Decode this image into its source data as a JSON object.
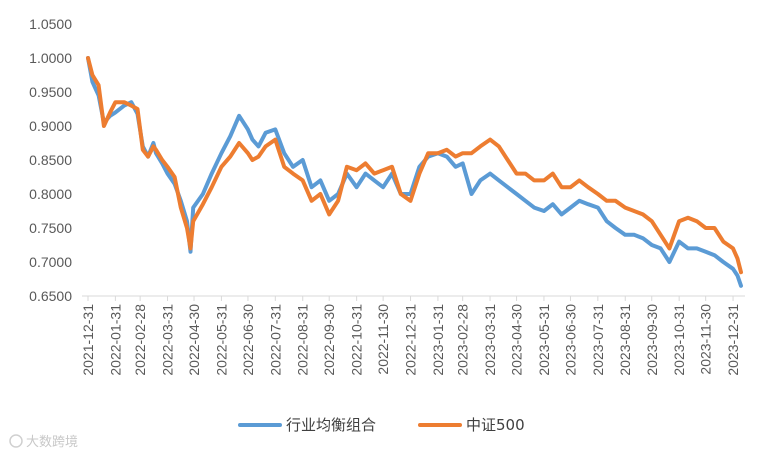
{
  "chart_data": {
    "type": "line",
    "title": "",
    "xlabel": "",
    "ylabel": "",
    "ylim": [
      0.65,
      1.05
    ],
    "y_ticks": [
      "1.0500",
      "1.0000",
      "0.9500",
      "0.9000",
      "0.8500",
      "0.8000",
      "0.7500",
      "0.7000",
      "0.6500"
    ],
    "x_ticks": [
      "2021-12-31",
      "2022-01-31",
      "2022-02-28",
      "2022-03-31",
      "2022-04-30",
      "2022-05-31",
      "2022-06-30",
      "2022-07-31",
      "2022-08-31",
      "2022-09-30",
      "2022-10-31",
      "2022-11-30",
      "2022-12-31",
      "2023-01-31",
      "2023-02-28",
      "2023-03-31",
      "2023-04-30",
      "2023-05-31",
      "2023-06-30",
      "2023-07-31",
      "2023-08-31",
      "2023-09-30",
      "2023-10-31",
      "2023-11-30",
      "2023-12-31"
    ],
    "grid": false,
    "legend_position": "bottom",
    "colors": {
      "series1": "#5B9BD5",
      "series2": "#ED7D31",
      "axis": "#d9d9d9"
    },
    "series": [
      {
        "name": "行业均衡组合",
        "x": [
          "2021-12-31",
          "2022-01-05",
          "2022-01-12",
          "2022-01-18",
          "2022-01-25",
          "2022-01-31",
          "2022-02-10",
          "2022-02-18",
          "2022-02-25",
          "2022-03-03",
          "2022-03-09",
          "2022-03-15",
          "2022-03-18",
          "2022-03-25",
          "2022-03-31",
          "2022-04-08",
          "2022-04-15",
          "2022-04-22",
          "2022-04-26",
          "2022-04-29",
          "2022-05-10",
          "2022-05-20",
          "2022-05-31",
          "2022-06-10",
          "2022-06-20",
          "2022-06-30",
          "2022-07-05",
          "2022-07-12",
          "2022-07-20",
          "2022-07-31",
          "2022-08-10",
          "2022-08-20",
          "2022-08-31",
          "2022-09-10",
          "2022-09-20",
          "2022-09-30",
          "2022-10-10",
          "2022-10-20",
          "2022-10-31",
          "2022-11-10",
          "2022-11-20",
          "2022-11-30",
          "2022-12-10",
          "2022-12-20",
          "2022-12-31",
          "2023-01-10",
          "2023-01-20",
          "2023-01-31",
          "2023-02-10",
          "2023-02-20",
          "2023-02-28",
          "2023-03-10",
          "2023-03-20",
          "2023-03-31",
          "2023-04-10",
          "2023-04-20",
          "2023-04-30",
          "2023-05-10",
          "2023-05-20",
          "2023-05-31",
          "2023-06-10",
          "2023-06-20",
          "2023-06-30",
          "2023-07-10",
          "2023-07-20",
          "2023-07-31",
          "2023-08-10",
          "2023-08-20",
          "2023-08-31",
          "2023-09-10",
          "2023-09-20",
          "2023-09-30",
          "2023-10-10",
          "2023-10-20",
          "2023-10-31",
          "2023-11-10",
          "2023-11-20",
          "2023-11-30",
          "2023-12-10",
          "2023-12-20",
          "2023-12-31",
          "2024-01-05",
          "2024-01-09"
        ],
        "values": [
          1.0,
          0.965,
          0.945,
          0.905,
          0.915,
          0.92,
          0.93,
          0.935,
          0.918,
          0.87,
          0.855,
          0.875,
          0.86,
          0.845,
          0.83,
          0.815,
          0.79,
          0.76,
          0.715,
          0.78,
          0.8,
          0.83,
          0.86,
          0.885,
          0.915,
          0.895,
          0.88,
          0.87,
          0.89,
          0.895,
          0.86,
          0.84,
          0.85,
          0.81,
          0.82,
          0.79,
          0.8,
          0.83,
          0.81,
          0.83,
          0.82,
          0.81,
          0.83,
          0.8,
          0.8,
          0.84,
          0.855,
          0.86,
          0.855,
          0.84,
          0.845,
          0.8,
          0.82,
          0.83,
          0.82,
          0.81,
          0.8,
          0.79,
          0.78,
          0.775,
          0.785,
          0.77,
          0.78,
          0.79,
          0.785,
          0.78,
          0.76,
          0.75,
          0.74,
          0.74,
          0.735,
          0.725,
          0.72,
          0.7,
          0.73,
          0.72,
          0.72,
          0.715,
          0.71,
          0.7,
          0.69,
          0.68,
          0.665
        ]
      },
      {
        "name": "中证500",
        "x": [
          "2021-12-31",
          "2022-01-05",
          "2022-01-12",
          "2022-01-18",
          "2022-01-25",
          "2022-01-31",
          "2022-02-10",
          "2022-02-18",
          "2022-02-25",
          "2022-03-03",
          "2022-03-09",
          "2022-03-15",
          "2022-03-18",
          "2022-03-25",
          "2022-03-31",
          "2022-04-08",
          "2022-04-15",
          "2022-04-22",
          "2022-04-26",
          "2022-04-29",
          "2022-05-10",
          "2022-05-20",
          "2022-05-31",
          "2022-06-10",
          "2022-06-20",
          "2022-06-30",
          "2022-07-05",
          "2022-07-12",
          "2022-07-20",
          "2022-07-31",
          "2022-08-10",
          "2022-08-20",
          "2022-08-31",
          "2022-09-10",
          "2022-09-20",
          "2022-09-30",
          "2022-10-10",
          "2022-10-20",
          "2022-10-31",
          "2022-11-10",
          "2022-11-20",
          "2022-11-30",
          "2022-12-10",
          "2022-12-20",
          "2022-12-31",
          "2023-01-10",
          "2023-01-20",
          "2023-01-31",
          "2023-02-10",
          "2023-02-20",
          "2023-02-28",
          "2023-03-10",
          "2023-03-20",
          "2023-03-31",
          "2023-04-10",
          "2023-04-20",
          "2023-04-30",
          "2023-05-10",
          "2023-05-20",
          "2023-05-31",
          "2023-06-10",
          "2023-06-20",
          "2023-06-30",
          "2023-07-10",
          "2023-07-20",
          "2023-07-31",
          "2023-08-10",
          "2023-08-20",
          "2023-08-31",
          "2023-09-10",
          "2023-09-20",
          "2023-09-30",
          "2023-10-10",
          "2023-10-20",
          "2023-10-31",
          "2023-11-10",
          "2023-11-20",
          "2023-11-30",
          "2023-12-10",
          "2023-12-20",
          "2023-12-31",
          "2024-01-05",
          "2024-01-09"
        ],
        "values": [
          1.0,
          0.975,
          0.96,
          0.9,
          0.92,
          0.935,
          0.935,
          0.93,
          0.925,
          0.865,
          0.855,
          0.87,
          0.865,
          0.85,
          0.84,
          0.825,
          0.78,
          0.75,
          0.72,
          0.76,
          0.785,
          0.81,
          0.84,
          0.855,
          0.875,
          0.86,
          0.85,
          0.855,
          0.87,
          0.88,
          0.84,
          0.83,
          0.82,
          0.79,
          0.8,
          0.77,
          0.79,
          0.84,
          0.835,
          0.845,
          0.83,
          0.835,
          0.84,
          0.8,
          0.79,
          0.83,
          0.86,
          0.86,
          0.865,
          0.855,
          0.86,
          0.86,
          0.87,
          0.88,
          0.87,
          0.85,
          0.83,
          0.83,
          0.82,
          0.82,
          0.83,
          0.81,
          0.81,
          0.82,
          0.81,
          0.8,
          0.79,
          0.79,
          0.78,
          0.775,
          0.77,
          0.76,
          0.74,
          0.72,
          0.76,
          0.765,
          0.76,
          0.75,
          0.75,
          0.73,
          0.72,
          0.705,
          0.685
        ]
      }
    ]
  },
  "watermark": "大数跨境"
}
